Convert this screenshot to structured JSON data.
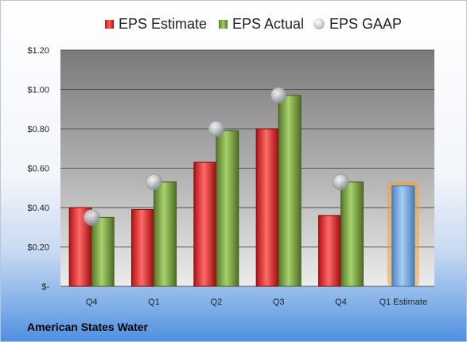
{
  "chart_data": {
    "type": "bar",
    "categories": [
      "Q4",
      "Q1",
      "Q2",
      "Q3",
      "Q4",
      "Q1 Estimate"
    ],
    "series": [
      {
        "name": "EPS Estimate",
        "values": [
          0.4,
          0.39,
          0.63,
          0.8,
          0.36,
          null
        ],
        "color": "#cc1f1f"
      },
      {
        "name": "EPS Actual",
        "values": [
          0.35,
          0.53,
          0.79,
          0.97,
          0.53,
          null
        ],
        "color": "#7da443"
      },
      {
        "name": "EPS GAAP",
        "values": [
          0.35,
          0.53,
          0.8,
          0.97,
          0.53,
          null
        ],
        "color": "#b8bdc4"
      }
    ],
    "forecast": {
      "category": "Q1 Estimate",
      "value": 0.51,
      "color": "#6fa3dd",
      "glow": "#f6a33c"
    },
    "yticks": [
      {
        "value": 0,
        "label": "$-"
      },
      {
        "value": 0.2,
        "label": "$0.20"
      },
      {
        "value": 0.4,
        "label": "$0.40"
      },
      {
        "value": 0.6,
        "label": "$0.60"
      },
      {
        "value": 0.8,
        "label": "$0.80"
      },
      {
        "value": 1.0,
        "label": "$1.00"
      },
      {
        "value": 1.2,
        "label": "$1.20"
      }
    ],
    "ylim": [
      0,
      1.2
    ],
    "grid": true,
    "legend": "top",
    "title": "",
    "xlabel": "",
    "ylabel": ""
  },
  "legend": {
    "estimate_label": "EPS Estimate",
    "actual_label": "EPS Actual",
    "gaap_label": "EPS GAAP"
  },
  "footer": {
    "company": "American States Water"
  }
}
